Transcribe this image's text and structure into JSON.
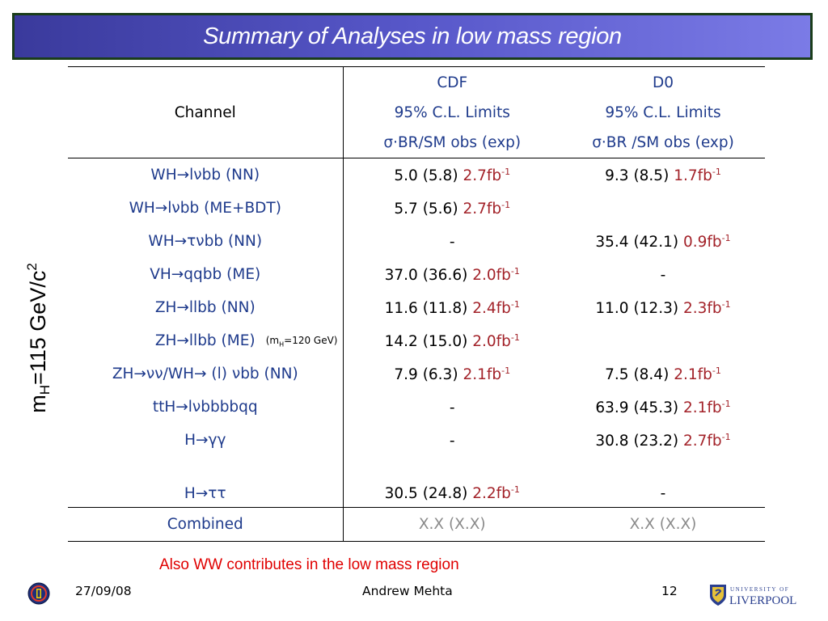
{
  "slide": {
    "title": "Summary of Analyses in low mass region",
    "side_label": {
      "main": "m",
      "sub": "H",
      "rest": "=115 GeV/c",
      "sup": "2"
    }
  },
  "table": {
    "header": {
      "channel": "Channel",
      "cdf": {
        "line1": "CDF",
        "line2": "95% C.L. Limits",
        "line3": "σ·BR/SM obs (exp)"
      },
      "d0": {
        "line1": "D0",
        "line2": "95% C.L. Limits",
        "line3": "σ·BR /SM obs (exp)"
      }
    },
    "rows": [
      {
        "channel": "WH→lνbb (NN)",
        "cdf": {
          "value": "5.0 (5.8)",
          "lumi": "2.7fb",
          "exp": "-1"
        },
        "d0": {
          "value": "9.3 (8.5)",
          "lumi": "1.7fb",
          "exp": "-1"
        }
      },
      {
        "channel": "WH→lνbb (ME+BDT)",
        "cdf": {
          "value": "5.7 (5.6)",
          "lumi": "2.7fb",
          "exp": "-1"
        },
        "d0": {
          "value": "",
          "lumi": "",
          "exp": ""
        }
      },
      {
        "channel": "WH→τνbb (NN)",
        "cdf": {
          "value": "-",
          "lumi": "",
          "exp": ""
        },
        "d0": {
          "value": "35.4 (42.1)",
          "lumi": "0.9fb",
          "exp": "-1"
        }
      },
      {
        "channel": "VH→qqbb (ME)",
        "cdf": {
          "value": "37.0 (36.6)",
          "lumi": "2.0fb",
          "exp": "-1"
        },
        "d0": {
          "value": "-",
          "lumi": "",
          "exp": ""
        }
      },
      {
        "channel": "ZH→llbb (NN)",
        "cdf": {
          "value": "11.6 (11.8)",
          "lumi": "2.4fb",
          "exp": "-1"
        },
        "d0": {
          "value": "11.0 (12.3)",
          "lumi": "2.3fb",
          "exp": "-1"
        }
      },
      {
        "channel": "ZH→llbb (ME)",
        "note": {
          "pre": "(m",
          "sub": "H",
          "post": "=120 GeV)"
        },
        "cdf": {
          "value": "14.2 (15.0)",
          "lumi": "2.0fb",
          "exp": "-1"
        },
        "d0": {
          "value": "",
          "lumi": "",
          "exp": ""
        }
      },
      {
        "channel": "ZH→νν/WH→ (l) νbb (NN)",
        "cdf": {
          "value": "7.9 (6.3)",
          "lumi": "2.1fb",
          "exp": "-1"
        },
        "d0": {
          "value": "7.5 (8.4)",
          "lumi": "2.1fb",
          "exp": "-1"
        }
      },
      {
        "channel": "ttH→lνbbbbqq",
        "cdf": {
          "value": "-",
          "lumi": "",
          "exp": ""
        },
        "d0": {
          "value": "63.9 (45.3)",
          "lumi": "2.1fb",
          "exp": "-1"
        }
      },
      {
        "channel": "H→γγ",
        "cdf": {
          "value": "-",
          "lumi": "",
          "exp": ""
        },
        "d0": {
          "value": "30.8 (23.2)",
          "lumi": "2.7fb",
          "exp": "-1"
        }
      },
      {
        "channel": "H→ττ",
        "cdf": {
          "value": "30.5 (24.8)",
          "lumi": "2.2fb",
          "exp": "-1"
        },
        "d0": {
          "value": "-",
          "lumi": "",
          "exp": ""
        }
      }
    ],
    "combined": {
      "channel": "Combined",
      "cdf": "X.X (X.X)",
      "d0": "X.X (X.X)"
    }
  },
  "note_text": "Also  WW contributes in the low mass region",
  "footer": {
    "date": "27/09/08",
    "author": "Andrew Mehta",
    "page": "12"
  },
  "logos": {
    "left": "d0-logo-icon",
    "right": "university-of-liverpool-logo"
  }
}
